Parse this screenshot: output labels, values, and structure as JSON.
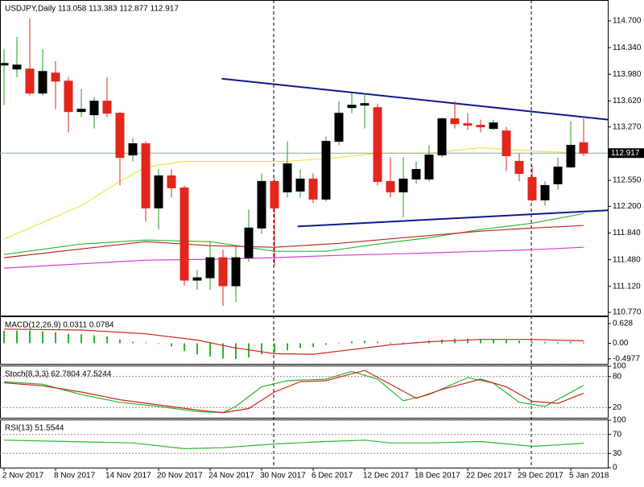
{
  "chart_data": [
    {
      "type": "candlestick",
      "title": "USDJPY,Daily  113.058 113.383 112.877 112.917",
      "categories": [
        "2 Nov 2017",
        null,
        null,
        null,
        "8 Nov 2017",
        null,
        null,
        null,
        "14 Nov 2017",
        null,
        null,
        null,
        "20 Nov 2017",
        null,
        null,
        null,
        "24 Nov 2017",
        null,
        null,
        null,
        "30 Nov 2017",
        null,
        null,
        null,
        "6 Dec 2017",
        null,
        null,
        null,
        "12 Dec 2017",
        null,
        null,
        null,
        "18 Dec 2017",
        null,
        null,
        null,
        "22 Dec 2017",
        null,
        null,
        null,
        "29 Dec 2017",
        null,
        null,
        null,
        "5 Jan 2018",
        null
      ],
      "open": [
        114.105,
        114.051,
        114.051,
        113.726,
        113.997,
        113.888,
        113.477,
        113.434,
        113.618,
        113.455,
        112.892,
        113.044,
        112.178,
        112.611,
        112.449,
        111.204,
        111.236,
        111.507,
        111.128,
        111.507,
        111.907,
        112.535,
        112.394,
        112.405,
        112.568,
        112.297,
        113.076,
        113.531,
        113.564,
        113.531,
        112.535,
        112.394,
        112.568,
        112.568,
        112.892,
        113.38,
        113.314,
        113.293,
        113.249,
        113.216,
        112.806,
        112.589,
        112.286,
        112.503,
        112.73,
        113.058
      ],
      "high": [
        114.321,
        114.484,
        114.733,
        114.321,
        114.159,
        113.943,
        113.78,
        113.672,
        113.943,
        113.477,
        113.119,
        113.076,
        112.697,
        112.697,
        112.481,
        111.344,
        111.723,
        111.615,
        111.669,
        112.156,
        112.643,
        112.589,
        113.076,
        112.697,
        112.643,
        113.141,
        113.618,
        113.726,
        113.726,
        113.585,
        112.86,
        112.86,
        112.806,
        113.022,
        113.401,
        113.618,
        113.455,
        113.369,
        113.369,
        113.271,
        112.914,
        112.752,
        112.535,
        112.86,
        113.347,
        113.383
      ],
      "low": [
        113.564,
        113.943,
        113.694,
        113.694,
        113.509,
        113.195,
        113.401,
        113.249,
        113.401,
        112.481,
        112.806,
        111.994,
        111.886,
        112.319,
        111.128,
        111.074,
        111.074,
        110.857,
        110.911,
        111.452,
        111.831,
        111.398,
        112.319,
        112.319,
        112.243,
        112.264,
        113.022,
        113.455,
        113.249,
        112.481,
        112.319,
        112.048,
        112.503,
        112.535,
        112.86,
        113.249,
        113.227,
        113.195,
        113.227,
        112.676,
        112.535,
        112.264,
        112.21,
        112.427,
        112.719,
        112.877
      ],
      "close": [
        114.127,
        114.105,
        113.726,
        114.018,
        113.888,
        113.477,
        113.509,
        113.618,
        113.455,
        112.86,
        113.044,
        112.178,
        112.611,
        112.449,
        111.204,
        111.236,
        111.507,
        111.128,
        111.507,
        111.907,
        112.535,
        112.178,
        112.773,
        112.568,
        112.297,
        113.076,
        113.455,
        113.564,
        113.585,
        112.535,
        112.394,
        112.568,
        112.697,
        112.892,
        113.38,
        113.314,
        113.293,
        113.271,
        113.325,
        112.882,
        112.643,
        112.286,
        112.481,
        112.73,
        113.022,
        112.917
      ],
      "up_color": "#000000",
      "up_wick_color": "#1e9e1e",
      "down_color": "#e3261c",
      "ylim": [
        110.727,
        114.971
      ],
      "yticks": [
        {
          "value": 114.7,
          "label": "114.700"
        },
        {
          "value": 114.34,
          "label": "114.340"
        },
        {
          "value": 113.98,
          "label": "113.980"
        },
        {
          "value": 113.62,
          "label": "113.620"
        },
        {
          "value": 113.27,
          "label": "113.270"
        },
        {
          "value": 112.55,
          "label": "112.550"
        },
        {
          "value": 112.2,
          "label": "112.200"
        },
        {
          "value": 111.84,
          "label": "111.840"
        },
        {
          "value": 111.48,
          "label": "111.480"
        },
        {
          "value": 111.12,
          "label": "111.120"
        },
        {
          "value": 110.77,
          "label": "110.770"
        }
      ],
      "last_price": {
        "value": 112.917,
        "label": "112.917"
      },
      "overlays": [
        {
          "color": "#f2e34a",
          "x": [
            0,
            6,
            9,
            11,
            14,
            18,
            22,
            26,
            29,
            33,
            37,
            41,
            45
          ],
          "values": [
            111.756,
            112.21,
            112.535,
            112.73,
            112.806,
            112.806,
            112.806,
            112.86,
            112.914,
            112.914,
            112.99,
            112.947,
            112.914
          ]
        },
        {
          "color": "#2db52d",
          "x": [
            0,
            6,
            11,
            16,
            21,
            25,
            29,
            33,
            37,
            41,
            45
          ],
          "values": [
            111.55,
            111.691,
            111.745,
            111.723,
            111.593,
            111.593,
            111.691,
            111.777,
            111.886,
            111.972,
            112.102
          ]
        },
        {
          "color": "#c8201e",
          "x": [
            0,
            11,
            16,
            21,
            26,
            31,
            37,
            41,
            45
          ],
          "values": [
            111.507,
            111.723,
            111.669,
            111.647,
            111.701,
            111.777,
            111.865,
            111.907,
            111.94
          ]
        },
        {
          "color": "#d23cd2",
          "x": [
            0,
            11,
            16,
            21,
            26,
            31,
            37,
            41,
            45
          ],
          "values": [
            111.366,
            111.474,
            111.485,
            111.507,
            111.539,
            111.561,
            111.593,
            111.615,
            111.647
          ]
        }
      ],
      "trendlines": [
        {
          "color": "#0d1a8f",
          "x": [
            16.9,
            46.9
          ],
          "values": [
            113.921,
            113.369
          ]
        },
        {
          "color": "#0d1a8f",
          "x": [
            22.8,
            46.9
          ],
          "values": [
            111.929,
            112.146
          ]
        }
      ]
    },
    {
      "type": "indicator",
      "title": "MACD(12,26,9) 0.0311 0.0784",
      "ylim": [
        -0.653,
        0.829
      ],
      "yticks": [
        0.628,
        {
          "value": 0,
          "label": "0.00"
        },
        -0.4977
      ],
      "grid": false,
      "series": [
        {
          "type": "histogram",
          "color": "#2db52d",
          "values": [
            0.4,
            0.4,
            0.4,
            0.38,
            0.35,
            0.3,
            0.28,
            0.25,
            0.22,
            0.12,
            0.05,
            0.02,
            -0.02,
            -0.1,
            -0.25,
            -0.35,
            -0.42,
            -0.48,
            -0.5,
            -0.45,
            -0.35,
            -0.3,
            -0.22,
            -0.15,
            -0.12,
            -0.05,
            0.02,
            0.06,
            0.08,
            0.05,
            0.03,
            0.02,
            0.04,
            0.08,
            0.12,
            0.14,
            0.14,
            0.13,
            0.12,
            0.1,
            0.08,
            0.05,
            0.04,
            0.04,
            0.05,
            0.0311
          ]
        },
        {
          "type": "line",
          "color": "#d42020",
          "x": [
            0,
            6,
            11,
            15,
            18,
            21,
            24,
            27,
            30,
            33,
            37,
            41,
            45
          ],
          "values": [
            0.45,
            0.42,
            0.3,
            0.1,
            -0.15,
            -0.33,
            -0.35,
            -0.2,
            -0.05,
            0.05,
            0.12,
            0.12,
            0.0784
          ]
        }
      ]
    },
    {
      "type": "indicator",
      "title": "Stoch(8,3,3) 62.7804 47.5244",
      "ylim": [
        0,
        100
      ],
      "yticks": [
        100,
        80,
        20
      ],
      "grid": true,
      "series": [
        {
          "type": "line",
          "color": "#2db52d",
          "x": [
            0,
            3,
            6,
            9,
            12,
            15,
            17,
            18,
            20,
            22,
            25,
            27,
            29,
            31,
            33,
            36,
            38,
            40,
            42,
            45
          ],
          "values": [
            70,
            65,
            45,
            30,
            22,
            12,
            10,
            22,
            60,
            72,
            75,
            90,
            75,
            33,
            45,
            78,
            67,
            30,
            22,
            62.7804
          ]
        },
        {
          "type": "line",
          "color": "#d42020",
          "x": [
            0,
            3,
            6,
            9,
            12,
            15,
            17,
            19,
            21,
            23,
            25,
            28,
            30,
            32,
            34,
            37,
            39,
            41,
            43,
            45
          ],
          "values": [
            68,
            62,
            50,
            35,
            25,
            15,
            10,
            18,
            50,
            70,
            72,
            92,
            65,
            38,
            55,
            75,
            60,
            32,
            28,
            47.5244
          ]
        }
      ]
    },
    {
      "type": "indicator",
      "title": "RSI(13) 51.5544",
      "ylim": [
        0,
        100
      ],
      "yticks": [
        100,
        70,
        30,
        0
      ],
      "grid": true,
      "series": [
        {
          "type": "line",
          "color": "#2db52d",
          "x": [
            0,
            5,
            10,
            14,
            17,
            21,
            25,
            28,
            30,
            33,
            37,
            41,
            43,
            45
          ],
          "values": [
            58,
            55,
            52,
            40,
            42,
            50,
            55,
            58,
            52,
            52,
            55,
            45,
            48,
            51.5544
          ]
        }
      ]
    }
  ]
}
